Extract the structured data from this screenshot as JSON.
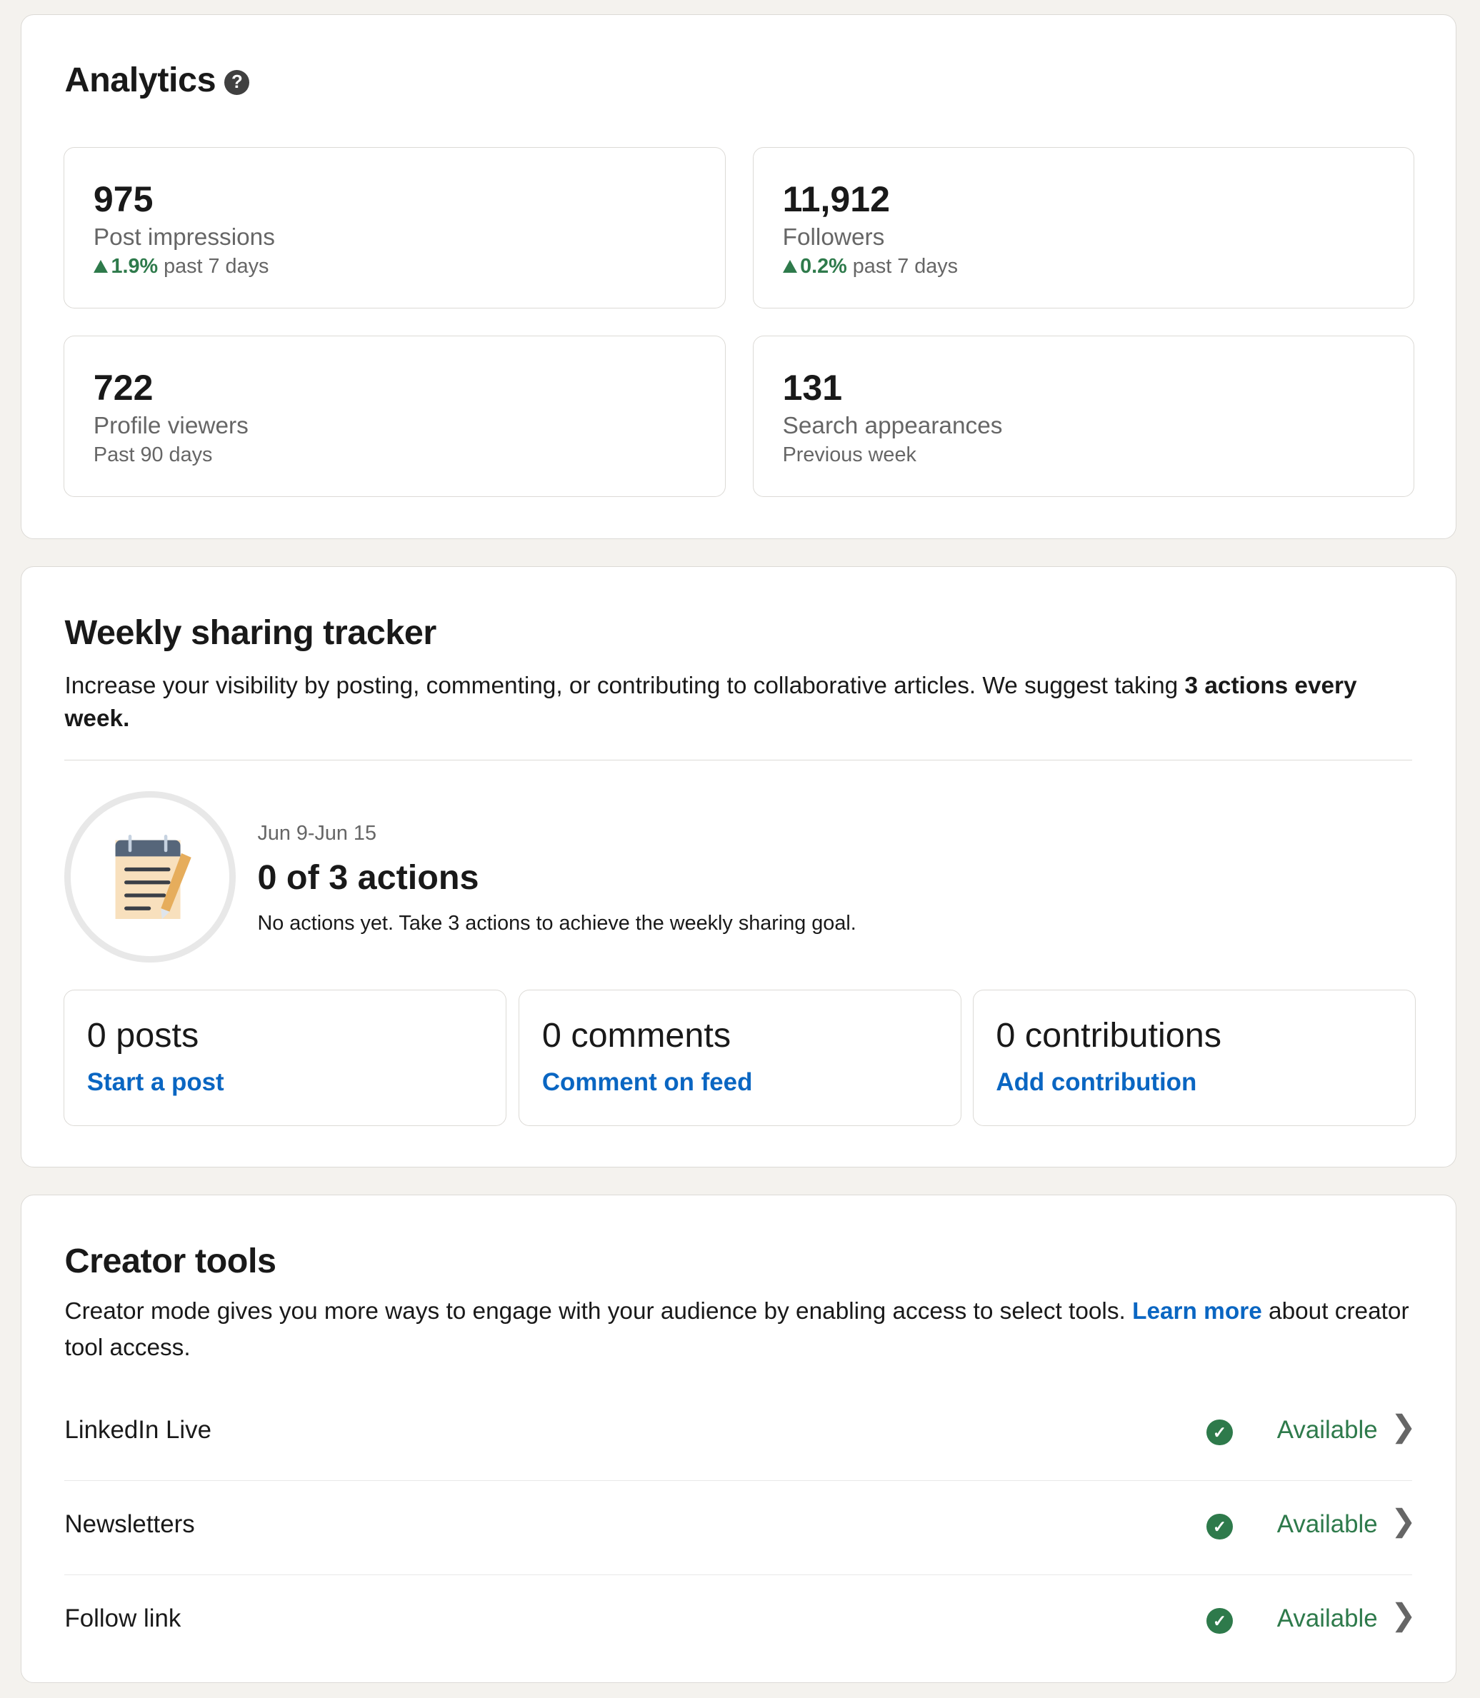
{
  "analytics": {
    "title": "Analytics",
    "stats": [
      {
        "value": "975",
        "label": "Post impressions",
        "change": "1.9%",
        "period": "past 7 days"
      },
      {
        "value": "11,912",
        "label": "Followers",
        "change": "0.2%",
        "period": "past 7 days"
      },
      {
        "value": "722",
        "label": "Profile viewers",
        "period": "Past 90 days"
      },
      {
        "value": "131",
        "label": "Search appearances",
        "period": "Previous week"
      }
    ]
  },
  "tracker": {
    "title": "Weekly sharing tracker",
    "description": "Increase your visibility by posting, commenting, or contributing to collaborative articles. We suggest taking ",
    "description_bold": "3 actions every week.",
    "date_range": "Jun 9-Jun 15",
    "progress": "0 of 3 actions",
    "progress_value": 0,
    "progress_goal": 3,
    "note": "No actions yet. Take 3 actions to achieve the weekly sharing goal.",
    "actions": [
      {
        "count": "0 posts",
        "link": "Start a post"
      },
      {
        "count": "0 comments",
        "link": "Comment on feed"
      },
      {
        "count": "0 contributions",
        "link": "Add contribution"
      }
    ]
  },
  "creator": {
    "title": "Creator tools",
    "description": "Creator mode gives you more ways to engage with your audience by enabling access to select tools. ",
    "learn_more": "Learn more",
    "description_end": " about creator tool access.",
    "tools": [
      {
        "name": "LinkedIn Live",
        "status": "Available"
      },
      {
        "name": "Newsletters",
        "status": "Available"
      },
      {
        "name": "Follow link",
        "status": "Available"
      }
    ]
  },
  "colors": {
    "accent": "#0a66c2",
    "success": "#2e7a4b",
    "background": "#f4f2ee"
  }
}
